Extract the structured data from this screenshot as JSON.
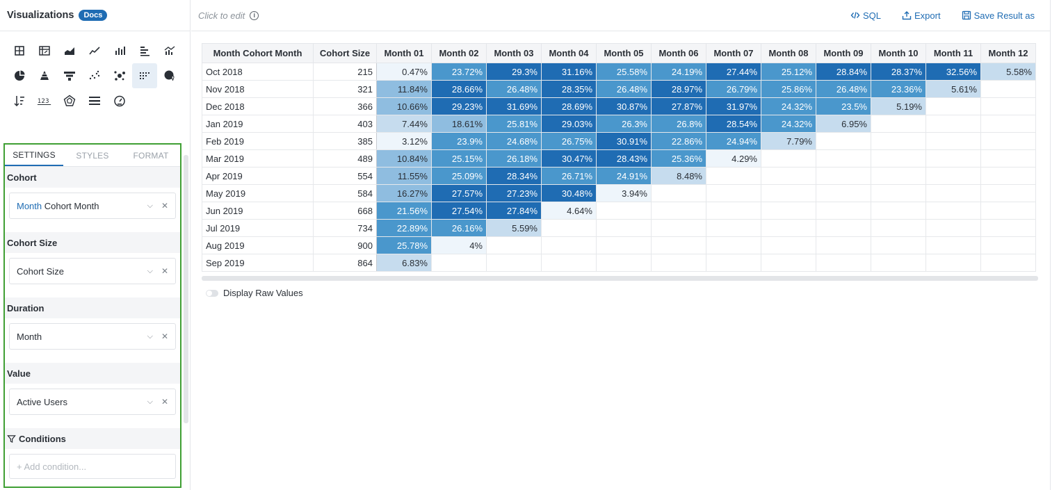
{
  "left_panel": {
    "title": "Visualizations",
    "docs_badge": "Docs",
    "viz_icons": [
      "table-icon",
      "pivot-table-icon",
      "area-chart-icon",
      "line-chart-icon",
      "column-chart-icon",
      "bar-chart-icon",
      "combo-chart-icon",
      "pie-chart-icon",
      "pyramid-icon",
      "funnel-icon",
      "scatter-icon",
      "bubble-icon",
      "cohort-icon",
      "map-icon",
      "sort-icon",
      "number-icon",
      "radar-icon",
      "gauge-bars-icon",
      "gauge-icon"
    ],
    "active_viz_icon": "cohort-icon",
    "tabs": [
      "SETTINGS",
      "STYLES",
      "FORMAT"
    ],
    "active_tab": "SETTINGS",
    "sections": {
      "cohort": {
        "title": "Cohort",
        "value_prefix": "Month",
        "value": "Cohort Month"
      },
      "cohort_size": {
        "title": "Cohort Size",
        "value": "Cohort Size"
      },
      "duration": {
        "title": "Duration",
        "value": "Month"
      },
      "value": {
        "title": "Value",
        "value": "Active Users"
      },
      "conditions": {
        "title": "Conditions",
        "placeholder": "+ Add condition..."
      }
    }
  },
  "main": {
    "click_to_edit": "Click to edit",
    "info_icon": "i",
    "actions": {
      "sql": "SQL",
      "export": "Export",
      "save_result": "Save Result as"
    },
    "display_raw_values": "Display Raw Values",
    "accent_color": "#1f6cb3"
  },
  "table": {
    "headers": [
      "Month Cohort Month",
      "Cohort Size",
      "Month 01",
      "Month 02",
      "Month 03",
      "Month 04",
      "Month 05",
      "Month 06",
      "Month 07",
      "Month 08",
      "Month 09",
      "Month 10",
      "Month 11",
      "Month 12"
    ],
    "rows": [
      {
        "month": "Oct 2018",
        "size": "215",
        "values": [
          "0.47%",
          "23.72%",
          "29.3%",
          "31.16%",
          "25.58%",
          "24.19%",
          "27.44%",
          "25.12%",
          "28.84%",
          "28.37%",
          "32.56%",
          "5.58%"
        ]
      },
      {
        "month": "Nov 2018",
        "size": "321",
        "values": [
          "11.84%",
          "28.66%",
          "26.48%",
          "28.35%",
          "26.48%",
          "28.97%",
          "26.79%",
          "25.86%",
          "26.48%",
          "23.36%",
          "5.61%",
          ""
        ]
      },
      {
        "month": "Dec 2018",
        "size": "366",
        "values": [
          "10.66%",
          "29.23%",
          "31.69%",
          "28.69%",
          "30.87%",
          "27.87%",
          "31.97%",
          "24.32%",
          "23.5%",
          "5.19%",
          "",
          ""
        ]
      },
      {
        "month": "Jan 2019",
        "size": "403",
        "values": [
          "7.44%",
          "18.61%",
          "25.81%",
          "29.03%",
          "26.3%",
          "26.8%",
          "28.54%",
          "24.32%",
          "6.95%",
          "",
          "",
          ""
        ]
      },
      {
        "month": "Feb 2019",
        "size": "385",
        "values": [
          "3.12%",
          "23.9%",
          "24.68%",
          "26.75%",
          "30.91%",
          "22.86%",
          "24.94%",
          "7.79%",
          "",
          "",
          "",
          ""
        ]
      },
      {
        "month": "Mar 2019",
        "size": "489",
        "values": [
          "10.84%",
          "25.15%",
          "26.18%",
          "30.47%",
          "28.43%",
          "25.36%",
          "4.29%",
          "",
          "",
          "",
          "",
          ""
        ]
      },
      {
        "month": "Apr 2019",
        "size": "554",
        "values": [
          "11.55%",
          "25.09%",
          "28.34%",
          "26.71%",
          "24.91%",
          "8.48%",
          "",
          "",
          "",
          "",
          "",
          ""
        ]
      },
      {
        "month": "May 2019",
        "size": "584",
        "values": [
          "16.27%",
          "27.57%",
          "27.23%",
          "30.48%",
          "3.94%",
          "",
          "",
          "",
          "",
          "",
          "",
          ""
        ]
      },
      {
        "month": "Jun 2019",
        "size": "668",
        "values": [
          "21.56%",
          "27.54%",
          "27.84%",
          "4.64%",
          "",
          "",
          "",
          "",
          "",
          "",
          "",
          ""
        ]
      },
      {
        "month": "Jul 2019",
        "size": "734",
        "values": [
          "22.89%",
          "26.16%",
          "5.59%",
          "",
          "",
          "",
          "",
          "",
          "",
          "",
          "",
          ""
        ]
      },
      {
        "month": "Aug 2019",
        "size": "900",
        "values": [
          "25.78%",
          "4%",
          "",
          "",
          "",
          "",
          "",
          "",
          "",
          "",
          "",
          ""
        ]
      },
      {
        "month": "Sep 2019",
        "size": "864",
        "values": [
          "6.83%",
          "",
          "",
          "",
          "",
          "",
          "",
          "",
          "",
          "",
          "",
          ""
        ]
      }
    ],
    "heat_colors": {
      "low": "#eef5fb",
      "mid_low": "#c6dcee",
      "mid": "#8fbde0",
      "mid_high": "#4a97cc",
      "high": "#1f6cb3"
    }
  }
}
